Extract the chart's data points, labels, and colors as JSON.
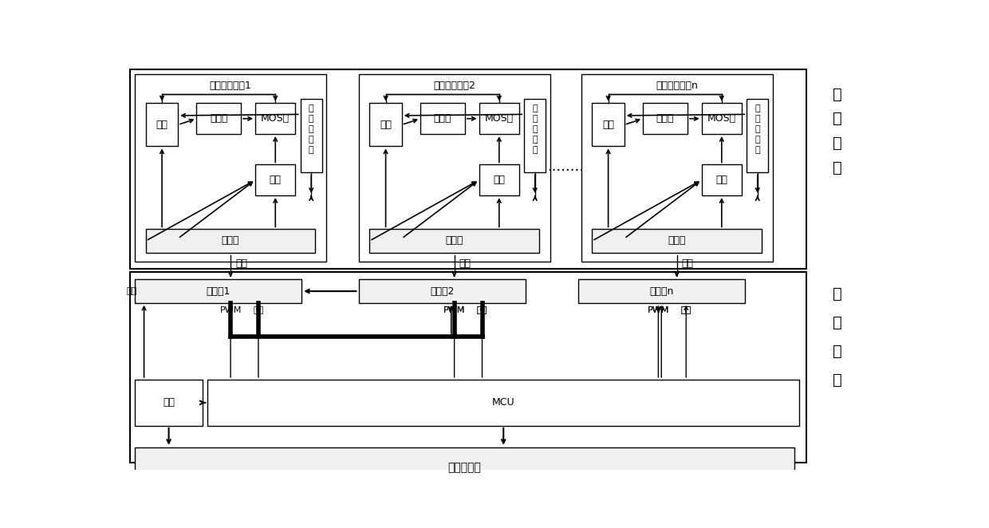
{
  "fig_width": 12.4,
  "fig_height": 6.62,
  "bg_color": "#ffffff",
  "power_units": [
    "功率控制装置1",
    "功率控制装置2",
    "功率控制装置n"
  ],
  "dianYuan": "电源",
  "reZu": "热电阵",
  "MOS": "MOS管",
  "guang": "光耦",
  "wenDu": "温度传感器",
  "lianjieqi": "连接器",
  "lianjieqi1": "连接器1",
  "lianjieqi2": "连接器2",
  "lianjieqin": "连接器n",
  "MCU": "MCU",
  "HMI": "人机交界面",
  "daoXian": "导线",
  "PWM": "PWM",
  "tongXin": "通信",
  "dianziXitong": "电子系统",
  "kongzhiShebei": "控制设备",
  "dots": "········"
}
